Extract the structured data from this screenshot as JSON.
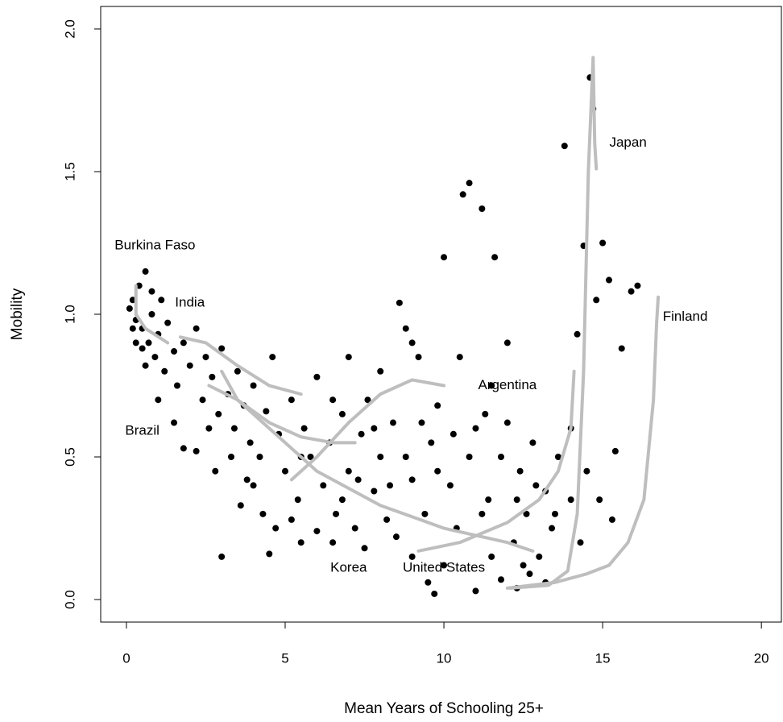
{
  "chart_data": {
    "type": "scatter",
    "x_label": "Mean Years of Schooling 25+",
    "y_label": "Mobility",
    "xlim": [
      -0.81,
      20.63
    ],
    "ylim": [
      -0.079,
      2.079
    ],
    "xticks": [
      0,
      5,
      10,
      15,
      20
    ],
    "yticks": [
      {
        "value": 0,
        "label": "0.0"
      },
      {
        "value": 0.5,
        "label": "0.5"
      },
      {
        "value": 1,
        "label": "1.0"
      },
      {
        "value": 1.5,
        "label": "1.5"
      },
      {
        "value": 2,
        "label": "2.0"
      }
    ],
    "color": "#000000",
    "line_color": "#bebebe",
    "x": [
      0.1,
      0.2,
      0.3,
      0.4,
      0.5,
      0.6,
      0.7,
      0.8,
      0.9,
      1.0,
      0.2,
      0.5,
      0.8,
      1.1,
      1.2,
      1.3,
      1.5,
      1.6,
      1.8,
      2.0,
      2.2,
      2.4,
      2.5,
      2.7,
      2.9,
      3.0,
      3.2,
      3.4,
      3.5,
      3.7,
      3.9,
      4.0,
      4.2,
      4.4,
      4.6,
      4.8,
      5.0,
      5.2,
      5.4,
      5.6,
      5.8,
      6.0,
      6.2,
      6.4,
      6.6,
      6.8,
      7.0,
      7.2,
      7.4,
      7.6,
      7.8,
      8.0,
      8.2,
      8.4,
      8.6,
      8.8,
      9.0,
      9.2,
      9.4,
      9.6,
      9.8,
      10.0,
      10.2,
      10.4,
      10.6,
      10.8,
      11.0,
      11.2,
      11.4,
      11.6,
      11.8,
      12.0,
      12.2,
      12.4,
      12.6,
      12.8,
      13.0,
      13.2,
      13.4,
      13.6,
      13.8,
      14.0,
      14.2,
      14.4,
      14.6,
      14.7,
      14.8,
      15.0,
      15.2,
      15.4,
      15.6,
      15.9,
      16.1,
      3.0,
      4.5,
      5.5,
      6.0,
      9.5,
      9.7,
      11.0,
      11.8,
      12.3,
      12.7,
      13.2,
      1.5,
      2.2,
      1.8,
      2.6,
      3.3,
      3.8,
      4.3,
      4.7,
      5.2,
      6.5,
      7.5,
      8.5,
      9.0,
      10.0,
      11.5,
      12.5,
      14.3,
      14.9,
      15.3,
      14.0,
      14.5,
      8.0,
      9.0,
      10.5,
      11.5,
      12.0,
      7.0,
      6.5,
      5.5,
      4.0,
      3.6,
      2.8,
      0.3,
      0.6,
      1.0,
      7.8,
      8.8,
      9.8,
      10.8,
      11.2,
      12.9,
      13.5,
      6.8,
      7.3,
      8.3,
      9.3,
      10.3,
      11.3,
      12.3
    ],
    "values": [
      1.02,
      1.05,
      0.98,
      1.1,
      0.95,
      1.15,
      0.9,
      1.0,
      0.85,
      0.93,
      0.95,
      0.88,
      1.08,
      1.05,
      0.8,
      0.97,
      0.87,
      0.75,
      0.9,
      0.82,
      0.95,
      0.7,
      0.85,
      0.78,
      0.65,
      0.88,
      0.72,
      0.6,
      0.8,
      0.68,
      0.55,
      0.75,
      0.5,
      0.66,
      0.85,
      0.58,
      0.45,
      0.7,
      0.35,
      0.6,
      0.5,
      0.78,
      0.4,
      0.55,
      0.3,
      0.65,
      0.45,
      0.25,
      0.58,
      0.7,
      0.38,
      0.5,
      0.28,
      0.62,
      1.04,
      0.95,
      0.42,
      0.85,
      0.3,
      0.55,
      0.68,
      1.2,
      0.4,
      0.25,
      1.42,
      1.46,
      0.6,
      1.37,
      0.35,
      1.2,
      0.5,
      0.9,
      0.2,
      0.45,
      0.3,
      0.55,
      0.15,
      0.38,
      0.25,
      0.5,
      1.59,
      0.35,
      0.93,
      1.24,
      1.83,
      1.72,
      1.05,
      1.25,
      1.12,
      0.52,
      0.88,
      1.08,
      1.1,
      0.15,
      0.16,
      0.2,
      0.24,
      0.06,
      0.02,
      0.03,
      0.07,
      0.04,
      0.09,
      0.06,
      0.62,
      0.52,
      0.53,
      0.6,
      0.5,
      0.42,
      0.3,
      0.25,
      0.28,
      0.2,
      0.18,
      0.22,
      0.15,
      0.12,
      0.15,
      0.12,
      0.2,
      0.35,
      0.28,
      0.6,
      0.45,
      0.8,
      0.9,
      0.85,
      0.75,
      0.62,
      0.85,
      0.7,
      0.5,
      0.4,
      0.33,
      0.45,
      0.9,
      0.82,
      0.7,
      0.6,
      0.5,
      0.45,
      0.5,
      0.3,
      0.4,
      0.3,
      0.35,
      0.42,
      0.4,
      0.62,
      0.58,
      0.65,
      0.35
    ],
    "lines": [
      {
        "name": "Burkina Faso",
        "label_x": 0.9,
        "label_y": 1.24,
        "x": [
          0.3,
          0.3,
          0.6,
          1.3
        ],
        "values": [
          1.1,
          1.0,
          0.95,
          0.9
        ]
      },
      {
        "name": "India",
        "label_x": 2.0,
        "label_y": 1.04,
        "x": [
          1.7,
          2.5,
          3.5,
          4.5,
          5.5
        ],
        "values": [
          0.92,
          0.9,
          0.82,
          0.75,
          0.72
        ]
      },
      {
        "name": "Brazil",
        "label_x": 0.5,
        "label_y": 0.59,
        "x": [
          2.6,
          3.5,
          4.5,
          5.5,
          6.5,
          7.2
        ],
        "values": [
          0.75,
          0.7,
          0.62,
          0.57,
          0.55,
          0.55
        ]
      },
      {
        "name": "Korea",
        "label_x": 7.0,
        "label_y": 0.11,
        "x": [
          3.0,
          3.5,
          4.5,
          6.0,
          8.0,
          10.0,
          12.0,
          12.8
        ],
        "values": [
          0.8,
          0.7,
          0.6,
          0.45,
          0.33,
          0.25,
          0.2,
          0.17
        ]
      },
      {
        "name": "United States",
        "label_x": 10.0,
        "label_y": 0.11,
        "x": [
          9.2,
          10.5,
          12.0,
          13.0,
          13.6,
          14.0,
          14.1
        ],
        "values": [
          0.17,
          0.2,
          0.27,
          0.35,
          0.45,
          0.6,
          0.8
        ]
      },
      {
        "name": "Argentina",
        "label_x": 12.0,
        "label_y": 0.75,
        "x": [
          5.2,
          6.0,
          7.0,
          8.0,
          9.0,
          10.0
        ],
        "values": [
          0.42,
          0.5,
          0.62,
          0.72,
          0.77,
          0.75
        ]
      },
      {
        "name": "Japan",
        "label_x": 15.8,
        "label_y": 1.6,
        "x": [
          12.1,
          13.3,
          13.9,
          14.2,
          14.4,
          14.55,
          14.7,
          14.75,
          14.8
        ],
        "values": [
          0.04,
          0.05,
          0.1,
          0.3,
          0.8,
          1.5,
          1.9,
          1.6,
          1.51
        ]
      },
      {
        "name": "Finland",
        "label_x": 17.6,
        "label_y": 0.99,
        "x": [
          12.0,
          13.5,
          14.5,
          15.2,
          15.8,
          16.3,
          16.6,
          16.7,
          16.75
        ],
        "values": [
          0.04,
          0.06,
          0.09,
          0.12,
          0.2,
          0.35,
          0.7,
          0.97,
          1.06
        ]
      }
    ]
  }
}
